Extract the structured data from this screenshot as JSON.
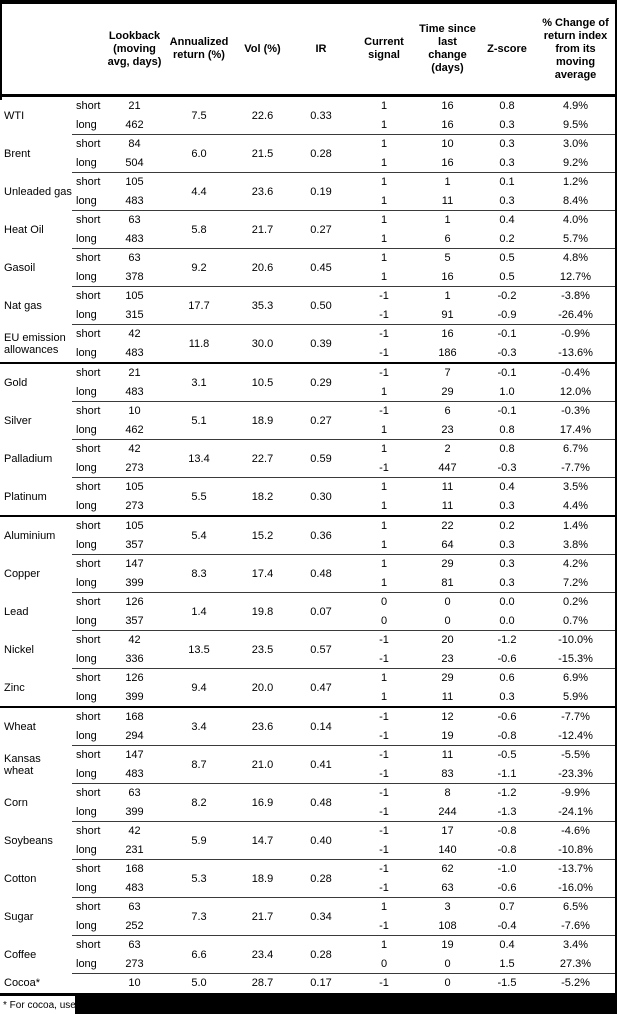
{
  "colors": {
    "text": "#000000",
    "background": "#ffffff",
    "grid_thin": "#3a3a3a",
    "grid_thick": "#000000"
  },
  "header": {
    "columns": [
      {
        "key": "lookback",
        "label": "Lookback (moving avg, days)"
      },
      {
        "key": "annualized",
        "label": "Annualized return (%)"
      },
      {
        "key": "vol",
        "label": "Vol (%)"
      },
      {
        "key": "ir",
        "label": "IR"
      },
      {
        "key": "signal",
        "label": "Current signal"
      },
      {
        "key": "timesince",
        "label": "Time since last change (days)"
      },
      {
        "key": "zscore",
        "label": "Z-score"
      },
      {
        "key": "pctchange",
        "label": "% Change of return index from its moving average"
      }
    ]
  },
  "sections": [
    {
      "name": "energy",
      "commodities": [
        {
          "name": "WTI",
          "annualized": "7.5",
          "vol": "22.6",
          "ir": "0.33",
          "rows": [
            {
              "leg": "short",
              "lookback": "21",
              "signal": "1",
              "days": "16",
              "zscore": "0.8",
              "pct": "4.9%"
            },
            {
              "leg": "long",
              "lookback": "462",
              "signal": "1",
              "days": "16",
              "zscore": "0.3",
              "pct": "9.5%"
            }
          ]
        },
        {
          "name": "Brent",
          "annualized": "6.0",
          "vol": "21.5",
          "ir": "0.28",
          "rows": [
            {
              "leg": "short",
              "lookback": "84",
              "signal": "1",
              "days": "10",
              "zscore": "0.3",
              "pct": "3.0%"
            },
            {
              "leg": "long",
              "lookback": "504",
              "signal": "1",
              "days": "16",
              "zscore": "0.3",
              "pct": "9.2%"
            }
          ]
        },
        {
          "name": "Unleaded gas",
          "annualized": "4.4",
          "vol": "23.6",
          "ir": "0.19",
          "rows": [
            {
              "leg": "short",
              "lookback": "105",
              "signal": "1",
              "days": "1",
              "zscore": "0.1",
              "pct": "1.2%"
            },
            {
              "leg": "long",
              "lookback": "483",
              "signal": "1",
              "days": "11",
              "zscore": "0.3",
              "pct": "8.4%"
            }
          ]
        },
        {
          "name": "Heat Oil",
          "annualized": "5.8",
          "vol": "21.7",
          "ir": "0.27",
          "rows": [
            {
              "leg": "short",
              "lookback": "63",
              "signal": "1",
              "days": "1",
              "zscore": "0.4",
              "pct": "4.0%"
            },
            {
              "leg": "long",
              "lookback": "483",
              "signal": "1",
              "days": "6",
              "zscore": "0.2",
              "pct": "5.7%"
            }
          ]
        },
        {
          "name": "Gasoil",
          "annualized": "9.2",
          "vol": "20.6",
          "ir": "0.45",
          "rows": [
            {
              "leg": "short",
              "lookback": "63",
              "signal": "1",
              "days": "5",
              "zscore": "0.5",
              "pct": "4.8%"
            },
            {
              "leg": "long",
              "lookback": "378",
              "signal": "1",
              "days": "16",
              "zscore": "0.5",
              "pct": "12.7%"
            }
          ]
        },
        {
          "name": "Nat gas",
          "annualized": "17.7",
          "vol": "35.3",
          "ir": "0.50",
          "rows": [
            {
              "leg": "short",
              "lookback": "105",
              "signal": "-1",
              "days": "1",
              "zscore": "-0.2",
              "pct": "-3.8%"
            },
            {
              "leg": "long",
              "lookback": "315",
              "signal": "-1",
              "days": "91",
              "zscore": "-0.9",
              "pct": "-26.4%"
            }
          ]
        },
        {
          "name": "EU emission allowances",
          "annualized": "11.8",
          "vol": "30.0",
          "ir": "0.39",
          "rows": [
            {
              "leg": "short",
              "lookback": "42",
              "signal": "-1",
              "days": "16",
              "zscore": "-0.1",
              "pct": "-0.9%"
            },
            {
              "leg": "long",
              "lookback": "483",
              "signal": "-1",
              "days": "186",
              "zscore": "-0.3",
              "pct": "-13.6%"
            }
          ]
        }
      ]
    },
    {
      "name": "precious-metals",
      "commodities": [
        {
          "name": "Gold",
          "annualized": "3.1",
          "vol": "10.5",
          "ir": "0.29",
          "rows": [
            {
              "leg": "short",
              "lookback": "21",
              "signal": "-1",
              "days": "7",
              "zscore": "-0.1",
              "pct": "-0.4%"
            },
            {
              "leg": "long",
              "lookback": "483",
              "signal": "1",
              "days": "29",
              "zscore": "1.0",
              "pct": "12.0%"
            }
          ]
        },
        {
          "name": "Silver",
          "annualized": "5.1",
          "vol": "18.9",
          "ir": "0.27",
          "rows": [
            {
              "leg": "short",
              "lookback": "10",
              "signal": "-1",
              "days": "6",
              "zscore": "-0.1",
              "pct": "-0.3%"
            },
            {
              "leg": "long",
              "lookback": "462",
              "signal": "1",
              "days": "23",
              "zscore": "0.8",
              "pct": "17.4%"
            }
          ]
        },
        {
          "name": "Palladium",
          "annualized": "13.4",
          "vol": "22.7",
          "ir": "0.59",
          "rows": [
            {
              "leg": "short",
              "lookback": "42",
              "signal": "1",
              "days": "2",
              "zscore": "0.8",
              "pct": "6.7%"
            },
            {
              "leg": "long",
              "lookback": "273",
              "signal": "-1",
              "days": "447",
              "zscore": "-0.3",
              "pct": "-7.7%"
            }
          ]
        },
        {
          "name": "Platinum",
          "annualized": "5.5",
          "vol": "18.2",
          "ir": "0.30",
          "rows": [
            {
              "leg": "short",
              "lookback": "105",
              "signal": "1",
              "days": "11",
              "zscore": "0.4",
              "pct": "3.5%"
            },
            {
              "leg": "long",
              "lookback": "273",
              "signal": "1",
              "days": "11",
              "zscore": "0.3",
              "pct": "4.4%"
            }
          ]
        }
      ]
    },
    {
      "name": "base-metals",
      "commodities": [
        {
          "name": "Aluminium",
          "annualized": "5.4",
          "vol": "15.2",
          "ir": "0.36",
          "rows": [
            {
              "leg": "short",
              "lookback": "105",
              "signal": "1",
              "days": "22",
              "zscore": "0.2",
              "pct": "1.4%"
            },
            {
              "leg": "long",
              "lookback": "357",
              "signal": "1",
              "days": "64",
              "zscore": "0.3",
              "pct": "3.8%"
            }
          ]
        },
        {
          "name": "Copper",
          "annualized": "8.3",
          "vol": "17.4",
          "ir": "0.48",
          "rows": [
            {
              "leg": "short",
              "lookback": "147",
              "signal": "1",
              "days": "29",
              "zscore": "0.3",
              "pct": "4.2%"
            },
            {
              "leg": "long",
              "lookback": "399",
              "signal": "1",
              "days": "81",
              "zscore": "0.3",
              "pct": "7.2%"
            }
          ]
        },
        {
          "name": "Lead",
          "annualized": "1.4",
          "vol": "19.8",
          "ir": "0.07",
          "rows": [
            {
              "leg": "short",
              "lookback": "126",
              "signal": "0",
              "days": "0",
              "zscore": "0.0",
              "pct": "0.2%"
            },
            {
              "leg": "long",
              "lookback": "357",
              "signal": "0",
              "days": "0",
              "zscore": "0.0",
              "pct": "0.7%"
            }
          ]
        },
        {
          "name": "Nickel",
          "annualized": "13.5",
          "vol": "23.5",
          "ir": "0.57",
          "rows": [
            {
              "leg": "short",
              "lookback": "42",
              "signal": "-1",
              "days": "20",
              "zscore": "-1.2",
              "pct": "-10.0%"
            },
            {
              "leg": "long",
              "lookback": "336",
              "signal": "-1",
              "days": "23",
              "zscore": "-0.6",
              "pct": "-15.3%"
            }
          ]
        },
        {
          "name": "Zinc",
          "annualized": "9.4",
          "vol": "20.0",
          "ir": "0.47",
          "rows": [
            {
              "leg": "short",
              "lookback": "126",
              "signal": "1",
              "days": "29",
              "zscore": "0.6",
              "pct": "6.9%"
            },
            {
              "leg": "long",
              "lookback": "399",
              "signal": "1",
              "days": "11",
              "zscore": "0.3",
              "pct": "5.9%"
            }
          ]
        }
      ]
    },
    {
      "name": "agriculture",
      "commodities": [
        {
          "name": "Wheat",
          "annualized": "3.4",
          "vol": "23.6",
          "ir": "0.14",
          "rows": [
            {
              "leg": "short",
              "lookback": "168",
              "signal": "-1",
              "days": "12",
              "zscore": "-0.6",
              "pct": "-7.7%"
            },
            {
              "leg": "long",
              "lookback": "294",
              "signal": "-1",
              "days": "19",
              "zscore": "-0.8",
              "pct": "-12.4%"
            }
          ]
        },
        {
          "name": "Kansas wheat",
          "annualized": "8.7",
          "vol": "21.0",
          "ir": "0.41",
          "rows": [
            {
              "leg": "short",
              "lookback": "147",
              "signal": "-1",
              "days": "11",
              "zscore": "-0.5",
              "pct": "-5.5%"
            },
            {
              "leg": "long",
              "lookback": "483",
              "signal": "-1",
              "days": "83",
              "zscore": "-1.1",
              "pct": "-23.3%"
            }
          ]
        },
        {
          "name": "Corn",
          "annualized": "8.2",
          "vol": "16.9",
          "ir": "0.48",
          "rows": [
            {
              "leg": "short",
              "lookback": "63",
              "signal": "-1",
              "days": "8",
              "zscore": "-1.2",
              "pct": "-9.9%"
            },
            {
              "leg": "long",
              "lookback": "399",
              "signal": "-1",
              "days": "244",
              "zscore": "-1.3",
              "pct": "-24.1%"
            }
          ]
        },
        {
          "name": "Soybeans",
          "annualized": "5.9",
          "vol": "14.7",
          "ir": "0.40",
          "rows": [
            {
              "leg": "short",
              "lookback": "42",
              "signal": "-1",
              "days": "17",
              "zscore": "-0.8",
              "pct": "-4.6%"
            },
            {
              "leg": "long",
              "lookback": "231",
              "signal": "-1",
              "days": "140",
              "zscore": "-0.8",
              "pct": "-10.8%"
            }
          ]
        },
        {
          "name": "Cotton",
          "annualized": "5.3",
          "vol": "18.9",
          "ir": "0.28",
          "rows": [
            {
              "leg": "short",
              "lookback": "168",
              "signal": "-1",
              "days": "62",
              "zscore": "-1.0",
              "pct": "-13.7%"
            },
            {
              "leg": "long",
              "lookback": "483",
              "signal": "-1",
              "days": "63",
              "zscore": "-0.6",
              "pct": "-16.0%"
            }
          ]
        },
        {
          "name": "Sugar",
          "annualized": "7.3",
          "vol": "21.7",
          "ir": "0.34",
          "rows": [
            {
              "leg": "short",
              "lookback": "63",
              "signal": "1",
              "days": "3",
              "zscore": "0.7",
              "pct": "6.5%"
            },
            {
              "leg": "long",
              "lookback": "252",
              "signal": "-1",
              "days": "108",
              "zscore": "-0.4",
              "pct": "-7.6%"
            }
          ]
        },
        {
          "name": "Coffee",
          "annualized": "6.6",
          "vol": "23.4",
          "ir": "0.28",
          "rows": [
            {
              "leg": "short",
              "lookback": "63",
              "signal": "1",
              "days": "19",
              "zscore": "0.4",
              "pct": "3.4%"
            },
            {
              "leg": "long",
              "lookback": "273",
              "signal": "0",
              "days": "0",
              "zscore": "1.5",
              "pct": "27.3%"
            }
          ]
        },
        {
          "name": "Cocoa*",
          "annualized": "5.0",
          "vol": "28.7",
          "ir": "0.17",
          "rows": [
            {
              "leg": "",
              "lookback": "10",
              "signal": "-1",
              "days": "0",
              "zscore": "-1.5",
              "pct": "-5.2%"
            }
          ]
        }
      ]
    }
  ],
  "footnote": {
    "visible_text": "* For cocoa, uses c",
    "redacted": true
  }
}
